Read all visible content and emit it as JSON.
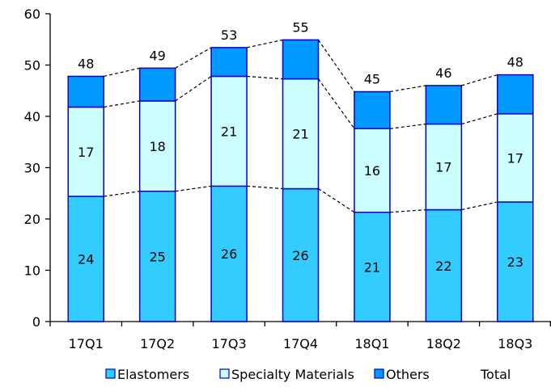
{
  "chart_data": {
    "type": "bar",
    "stacked": true,
    "categories": [
      "17Q1",
      "17Q2",
      "17Q3",
      "17Q4",
      "18Q1",
      "18Q2",
      "18Q3"
    ],
    "series": [
      {
        "name": "Elastomers",
        "values": [
          24.4,
          25.4,
          26.4,
          25.9,
          21.3,
          21.8,
          23.3
        ],
        "labels": [
          "24",
          "25",
          "26",
          "26",
          "21",
          "22",
          "23"
        ],
        "color": "#33ccff"
      },
      {
        "name": "Specialty Materials",
        "values": [
          17.4,
          17.6,
          21.4,
          21.4,
          16.3,
          16.7,
          17.2
        ],
        "labels": [
          "17",
          "18",
          "21",
          "21",
          "16",
          "17",
          "17"
        ],
        "color": "#ccffff"
      },
      {
        "name": "Others",
        "values": [
          6.0,
          6.4,
          5.6,
          7.6,
          7.2,
          7.5,
          7.6
        ],
        "color": "#0099ff"
      }
    ],
    "totals": {
      "name": "Total",
      "values": [
        48,
        49,
        53,
        55,
        45,
        46,
        48
      ]
    },
    "ylim": [
      0,
      60
    ],
    "yticks": [
      0,
      10,
      20,
      30,
      40,
      50,
      60
    ],
    "grid": false,
    "legend_position": "bottom",
    "title": "",
    "xlabel": "",
    "ylabel": ""
  }
}
